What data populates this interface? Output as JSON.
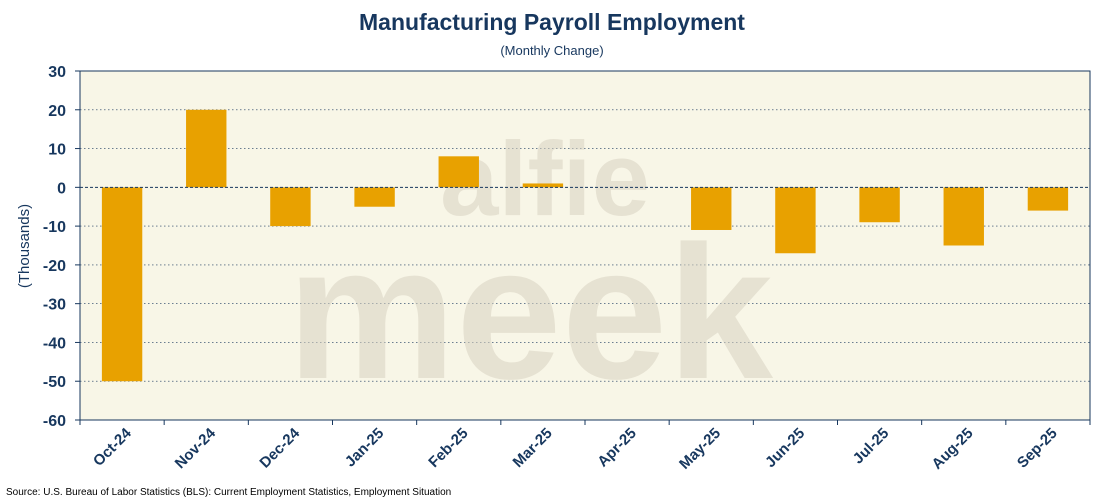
{
  "chart_data": {
    "type": "bar",
    "title": "Manufacturing Payroll Employment",
    "subtitle": "(Monthly Change)",
    "ylabel": "(Thousands)",
    "xlabel": "",
    "categories": [
      "Oct-24",
      "Nov-24",
      "Dec-24",
      "Jan-25",
      "Feb-25",
      "Mar-25",
      "Apr-25",
      "May-25",
      "Jun-25",
      "Jul-25",
      "Aug-25",
      "Sep-25"
    ],
    "values": [
      -50,
      20,
      -10,
      -5,
      8,
      1,
      0,
      -11,
      -17,
      -9,
      -15,
      -6
    ],
    "ylim": [
      -60,
      30
    ],
    "yticks": [
      30,
      20,
      10,
      0,
      -10,
      -20,
      -30,
      -40,
      -50,
      -60
    ],
    "grid": true,
    "bar_color": "#e8a100",
    "plot_background": "#f8f6e7",
    "text_color": "#17375e"
  },
  "watermark": {
    "line1": "alfie",
    "line2": "meek"
  },
  "source": "Source: U.S. Bureau of Labor Statistics (BLS): Current Employment Statistics, Employment Situation"
}
